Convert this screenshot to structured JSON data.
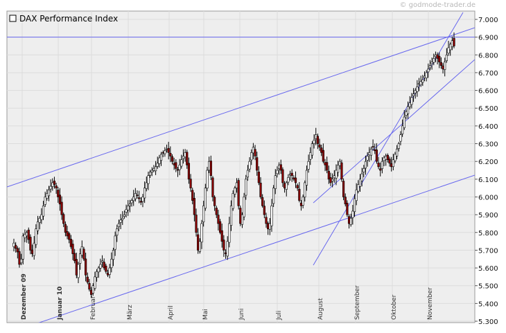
{
  "watermark": "© godmode-trader.de",
  "chart_data": {
    "type": "candlestick",
    "title": "",
    "legend": [
      {
        "name": "DAX Performance Index",
        "placement": "top-left"
      }
    ],
    "ylim": [
      5300,
      7050
    ],
    "y_ticks": [
      "5.300",
      "5.400",
      "5.500",
      "5.600",
      "5.700",
      "5.800",
      "5.900",
      "6.000",
      "6.100",
      "6.200",
      "6.300",
      "6.400",
      "6.500",
      "6.600",
      "6.700",
      "6.800",
      "6.900",
      "7.000"
    ],
    "y_tick_values": [
      5300,
      5400,
      5500,
      5600,
      5700,
      5800,
      5900,
      6000,
      6100,
      6200,
      6300,
      6400,
      6500,
      6600,
      6700,
      6800,
      6900,
      7000
    ],
    "x_months": [
      {
        "label": "Dezember 09",
        "bold": true
      },
      {
        "label": "Januar 10",
        "bold": true
      },
      {
        "label": "Februar",
        "bold": false
      },
      {
        "label": "März",
        "bold": false
      },
      {
        "label": "April",
        "bold": false
      },
      {
        "label": "Mai",
        "bold": false
      },
      {
        "label": "Juni",
        "bold": false
      },
      {
        "label": "Juli",
        "bold": false
      },
      {
        "label": "August",
        "bold": false
      },
      {
        "label": "September",
        "bold": false
      },
      {
        "label": "Oktober",
        "bold": false
      },
      {
        "label": "November",
        "bold": false
      }
    ],
    "grid": true,
    "colors": {
      "up": "#ffffff",
      "down": "#8b0000",
      "trendline": "#6666ee",
      "grid": "#dcdcdc",
      "plot_bg": "#eeeeee"
    },
    "horizontal_line": 6900,
    "close_series": [
      5740,
      5710,
      5690,
      5620,
      5650,
      5780,
      5790,
      5800,
      5760,
      5700,
      5680,
      5740,
      5820,
      5860,
      5880,
      5900,
      5950,
      6000,
      6020,
      6040,
      6060,
      6080,
      6070,
      6050,
      6000,
      5960,
      5900,
      5850,
      5800,
      5780,
      5760,
      5720,
      5680,
      5640,
      5560,
      5620,
      5680,
      5720,
      5650,
      5560,
      5520,
      5480,
      5450,
      5500,
      5550,
      5580,
      5600,
      5620,
      5640,
      5600,
      5580,
      5560,
      5600,
      5650,
      5700,
      5780,
      5820,
      5850,
      5870,
      5880,
      5900,
      5930,
      5950,
      5960,
      5980,
      6000,
      6020,
      6010,
      5990,
      5970,
      6000,
      6050,
      6080,
      6120,
      6140,
      6150,
      6160,
      6170,
      6190,
      6220,
      6240,
      6250,
      6260,
      6270,
      6250,
      6230,
      6200,
      6180,
      6160,
      6150,
      6180,
      6210,
      6230,
      6250,
      6180,
      6100,
      6050,
      5980,
      5900,
      5800,
      5700,
      5750,
      5850,
      5950,
      6050,
      6150,
      6200,
      6120,
      6000,
      5950,
      5900,
      5850,
      5800,
      5750,
      5700,
      5680,
      5750,
      5850,
      5950,
      6020,
      6050,
      6080,
      5950,
      5850,
      5900,
      6000,
      6100,
      6150,
      6200,
      6250,
      6280,
      6230,
      6150,
      6080,
      6000,
      5950,
      5900,
      5850,
      5820,
      5850,
      5950,
      6050,
      6120,
      6150,
      6180,
      6150,
      6080,
      6050,
      6080,
      6110,
      6130,
      6120,
      6100,
      6080,
      6050,
      5980,
      5950,
      6000,
      6080,
      6150,
      6200,
      6250,
      6300,
      6320,
      6350,
      6300,
      6280,
      6250,
      6200,
      6180,
      6150,
      6100,
      6080,
      6100,
      6120,
      6150,
      6180,
      6200,
      6100,
      6000,
      5960,
      5900,
      5850,
      5880,
      5920,
      5990,
      6040,
      6070,
      6100,
      6130,
      6160,
      6200,
      6230,
      6250,
      6270,
      6280,
      6260,
      6200,
      6170,
      6150,
      6200,
      6220,
      6230,
      6210,
      6190,
      6170,
      6210,
      6240,
      6270,
      6300,
      6350,
      6400,
      6450,
      6480,
      6510,
      6530,
      6560,
      6580,
      6600,
      6620,
      6640,
      6650,
      6660,
      6680,
      6700,
      6720,
      6740,
      6760,
      6780,
      6800,
      6780,
      6760,
      6740,
      6720,
      6760,
      6800,
      6840,
      6860,
      6880,
      6850
    ]
  }
}
